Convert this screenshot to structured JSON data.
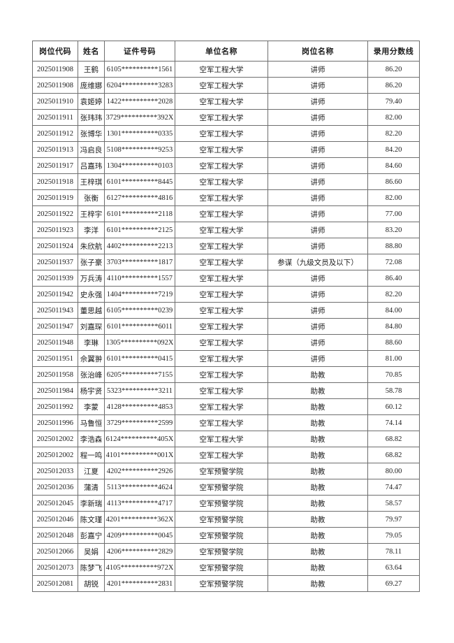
{
  "colors": {
    "page_background": "#ffffff",
    "table_border": "#6e6e6e",
    "text": "#1c1c1c"
  },
  "table": {
    "columns": [
      "岗位代码",
      "姓名",
      "证件号码",
      "单位名称",
      "岗位名称",
      "录用分数线"
    ],
    "rows": [
      [
        "2025011908",
        "王鹤",
        "6105**********1561",
        "空军工程大学",
        "讲师",
        "86.20"
      ],
      [
        "2025011908",
        "庞维娜",
        "6204**********3283",
        "空军工程大学",
        "讲师",
        "86.20"
      ],
      [
        "2025011910",
        "袁姬婷",
        "1422**********2028",
        "空军工程大学",
        "讲师",
        "79.40"
      ],
      [
        "2025011911",
        "张玮玮",
        "3729**********392X",
        "空军工程大学",
        "讲师",
        "82.00"
      ],
      [
        "2025011912",
        "张博华",
        "1301**********0335",
        "空军工程大学",
        "讲师",
        "82.20"
      ],
      [
        "2025011913",
        "冯启良",
        "5108**********9253",
        "空军工程大学",
        "讲师",
        "84.20"
      ],
      [
        "2025011917",
        "吕嘉玮",
        "1304**********0103",
        "空军工程大学",
        "讲师",
        "84.60"
      ],
      [
        "2025011918",
        "王梓琪",
        "6101**********8445",
        "空军工程大学",
        "讲师",
        "86.60"
      ],
      [
        "2025011919",
        "张衡",
        "6127**********4816",
        "空军工程大学",
        "讲师",
        "82.00"
      ],
      [
        "2025011922",
        "王梓宇",
        "6101**********2118",
        "空军工程大学",
        "讲师",
        "77.00"
      ],
      [
        "2025011923",
        "李洋",
        "6101**********2125",
        "空军工程大学",
        "讲师",
        "83.20"
      ],
      [
        "2025011924",
        "朱欣航",
        "4402**********2213",
        "空军工程大学",
        "讲师",
        "88.80"
      ],
      [
        "2025011937",
        "张子豪",
        "3703**********1817",
        "空军工程大学",
        "参谋（九级文员及以下）",
        "72.08"
      ],
      [
        "2025011939",
        "万兵涛",
        "4110**********1557",
        "空军工程大学",
        "讲师",
        "86.40"
      ],
      [
        "2025011942",
        "史永强",
        "1404**********7219",
        "空军工程大学",
        "讲师",
        "82.20"
      ],
      [
        "2025011943",
        "董思越",
        "6105**********0239",
        "空军工程大学",
        "讲师",
        "84.00"
      ],
      [
        "2025011947",
        "刘嘉琛",
        "6101**********6011",
        "空军工程大学",
        "讲师",
        "84.80"
      ],
      [
        "2025011948",
        "李琳",
        "1305**********092X",
        "空军工程大学",
        "讲师",
        "88.60"
      ],
      [
        "2025011951",
        "佘翼翀",
        "6101**********0415",
        "空军工程大学",
        "讲师",
        "81.00"
      ],
      [
        "2025011958",
        "张治峰",
        "6205**********7155",
        "空军工程大学",
        "助教",
        "70.85"
      ],
      [
        "2025011984",
        "杨宇贤",
        "5323**********3211",
        "空军工程大学",
        "助教",
        "58.78"
      ],
      [
        "2025011992",
        "李蒙",
        "4128**********4853",
        "空军工程大学",
        "助教",
        "60.12"
      ],
      [
        "2025011996",
        "马鲁恒",
        "3729**********2599",
        "空军工程大学",
        "助教",
        "74.14"
      ],
      [
        "2025012002",
        "李浩森",
        "6124**********405X",
        "空军工程大学",
        "助教",
        "68.82"
      ],
      [
        "2025012002",
        "程一鸣",
        "4101**********001X",
        "空军工程大学",
        "助教",
        "68.82"
      ],
      [
        "2025012033",
        "江夏",
        "4202**********2926",
        "空军预警学院",
        "助教",
        "80.00"
      ],
      [
        "2025012036",
        "蒲清",
        "5113**********4624",
        "空军预警学院",
        "助教",
        "74.47"
      ],
      [
        "2025012045",
        "李新瑞",
        "4113**********4717",
        "空军预警学院",
        "助教",
        "58.57"
      ],
      [
        "2025012046",
        "陈文瑾",
        "4201**********362X",
        "空军预警学院",
        "助教",
        "79.97"
      ],
      [
        "2025012048",
        "彭嘉宁",
        "4209**********0045",
        "空军预警学院",
        "助教",
        "79.05"
      ],
      [
        "2025012066",
        "吴娟",
        "4206**********2829",
        "空军预警学院",
        "助教",
        "78.11"
      ],
      [
        "2025012073",
        "陈梦飞",
        "4105**********972X",
        "空军预警学院",
        "助教",
        "63.64"
      ],
      [
        "2025012081",
        "胡锐",
        "4201**********2831",
        "空军预警学院",
        "助教",
        "69.27"
      ]
    ],
    "column_semantic_names": [
      "cell-position-code",
      "cell-name",
      "cell-id-number",
      "cell-unit-name",
      "cell-position-name",
      "cell-admission-score"
    ]
  }
}
